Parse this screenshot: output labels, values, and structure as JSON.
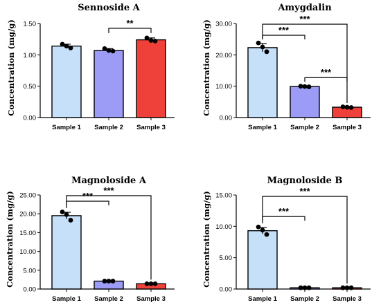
{
  "colors": {
    "sample1": "#c6e0fa",
    "sample2": "#9c9cf7",
    "sample3": "#f0403a",
    "point": "#000000",
    "axis": "#000000"
  },
  "chart_data": [
    {
      "type": "bar",
      "title": "Sennoside A",
      "ylabel": "Concentration (mg/g)",
      "categories": [
        "Sample 1",
        "Sample 2",
        "Sample 3"
      ],
      "values": [
        1.14,
        1.07,
        1.24
      ],
      "errors": [
        0.03,
        0.03,
        0.03
      ],
      "points": [
        [
          1.17,
          1.14,
          1.11
        ],
        [
          1.1,
          1.07,
          1.06
        ],
        [
          1.27,
          1.23,
          1.22
        ]
      ],
      "ylim": [
        0,
        1.5
      ],
      "yticks": [
        "0.00",
        "0.50",
        "1.00",
        "1.50"
      ],
      "sig": [
        {
          "from": 1,
          "to": 2,
          "label": "**"
        }
      ]
    },
    {
      "type": "bar",
      "title": "Amygdalin",
      "ylabel": "Concentration (mg/g)",
      "categories": [
        "Sample 1",
        "Sample 2",
        "Sample 3"
      ],
      "values": [
        22.3,
        9.9,
        3.3
      ],
      "errors": [
        1.3,
        0.2,
        0.2
      ],
      "points": [
        [
          23.8,
          22.5,
          21.0
        ],
        [
          10.0,
          9.9,
          9.8
        ],
        [
          3.4,
          3.3,
          3.2
        ]
      ],
      "ylim": [
        0,
        30
      ],
      "yticks": [
        "0.00",
        "10.00",
        "20.00",
        "30.00"
      ],
      "sig": [
        {
          "from": 0,
          "to": 1,
          "label": "***"
        },
        {
          "from": 1,
          "to": 2,
          "label": "***"
        },
        {
          "from": 0,
          "to": 2,
          "label": "***"
        }
      ]
    },
    {
      "type": "bar",
      "title": "Magnoloside A",
      "ylabel": "Concentration (mg/g)",
      "categories": [
        "Sample 1",
        "Sample 2",
        "Sample 3"
      ],
      "values": [
        19.5,
        2.1,
        1.4
      ],
      "errors": [
        0.9,
        0.1,
        0.1
      ],
      "points": [
        [
          20.5,
          19.8,
          18.3
        ],
        [
          2.1,
          2.1,
          2.1
        ],
        [
          1.4,
          1.4,
          1.4
        ]
      ],
      "ylim": [
        0,
        25
      ],
      "yticks": [
        "0.00",
        "5.00",
        "10.00",
        "15.00",
        "20.00",
        "25.00"
      ],
      "sig": [
        {
          "from": 0,
          "to": 1,
          "label": "***"
        },
        {
          "from": 0,
          "to": 2,
          "label": "***"
        }
      ]
    },
    {
      "type": "bar",
      "title": "Magnoloside B",
      "ylabel": "Concentration (mg/g)",
      "categories": [
        "Sample 1",
        "Sample 2",
        "Sample 3"
      ],
      "values": [
        9.3,
        0.2,
        0.2
      ],
      "errors": [
        0.5,
        0.05,
        0.05
      ],
      "points": [
        [
          9.9,
          9.4,
          8.7
        ],
        [
          0.2,
          0.2,
          0.2
        ],
        [
          0.2,
          0.2,
          0.2
        ]
      ],
      "ylim": [
        0,
        15
      ],
      "yticks": [
        "0.00",
        "5.00",
        "10.00",
        "15.00"
      ],
      "sig": [
        {
          "from": 0,
          "to": 1,
          "label": "***"
        },
        {
          "from": 0,
          "to": 2,
          "label": "***"
        }
      ]
    }
  ]
}
